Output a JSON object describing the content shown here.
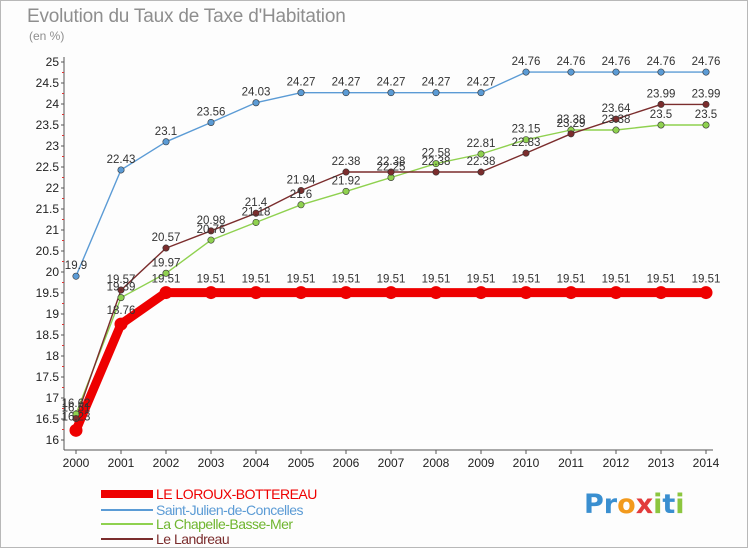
{
  "title": "Evolution du Taux de Taxe d'Habitation",
  "unit": "(en %)",
  "logo": {
    "letters": [
      {
        "ch": "P",
        "color": "#3a8fd0"
      },
      {
        "ch": "r",
        "color": "#3a8fd0"
      },
      {
        "ch": "o",
        "color": "#f29a1d"
      },
      {
        "ch": "x",
        "color": "#e23b3b"
      },
      {
        "ch": "i",
        "color": "#8cc63f"
      },
      {
        "ch": "t",
        "color": "#3a8fd0"
      },
      {
        "ch": "i",
        "color": "#8cc63f"
      }
    ]
  },
  "chart_data": {
    "type": "line",
    "title": "Evolution du Taux de Taxe d'Habitation",
    "ylabel": "(en %)",
    "xlabel": "",
    "x": [
      "2000",
      "2001",
      "2002",
      "2003",
      "2004",
      "2005",
      "2006",
      "2007",
      "2008",
      "2009",
      "2010",
      "2011",
      "2012",
      "2013",
      "2014"
    ],
    "ylim": [
      16,
      25
    ],
    "ytick_step": 0.5,
    "grid": false,
    "legend_position": "bottom-left",
    "series": [
      {
        "name": "LE LOROUX-BOTTEREAU",
        "color": "#ee0000",
        "emphasis": true,
        "values": [
          16.23,
          18.76,
          19.51,
          19.51,
          19.51,
          19.51,
          19.51,
          19.51,
          19.51,
          19.51,
          19.51,
          19.51,
          19.51,
          19.51,
          19.51
        ],
        "labels": [
          "16.23",
          "18.76",
          "19.51",
          "19.51",
          "19.51",
          "19.51",
          "19.51",
          "19.51",
          "19.51",
          "19.51",
          "19.51",
          "19.51",
          "19.51",
          "19.51",
          "19.51"
        ]
      },
      {
        "name": "Saint-Julien-de-Concelles",
        "color": "#5b9bd5",
        "values": [
          19.9,
          22.43,
          23.1,
          23.56,
          24.03,
          24.27,
          24.27,
          24.27,
          24.27,
          24.27,
          24.76,
          24.76,
          24.76,
          24.76,
          24.76
        ],
        "labels": [
          "19.9",
          "22.43",
          "23.1",
          "23.56",
          "24.03",
          "24.27",
          "24.27",
          "24.27",
          "24.27",
          "24.27",
          "24.76",
          "24.76",
          "24.76",
          "24.76",
          "24.76"
        ]
      },
      {
        "name": "La Chapelle-Basse-Mer",
        "color": "#8fd14f",
        "values": [
          16.62,
          19.39,
          19.97,
          20.76,
          21.18,
          21.6,
          21.92,
          22.25,
          22.58,
          22.81,
          23.15,
          23.38,
          23.38,
          23.5,
          23.5
        ],
        "labels": [
          "16.62",
          "19.39",
          "19.97",
          "20.76",
          "21.18",
          "21.6",
          "21.92",
          "22.25",
          "22.58",
          "22.81",
          "23.15",
          "23.38",
          "23.38",
          "23.5",
          "23.5"
        ]
      },
      {
        "name": "Le Landreau",
        "color": "#7b2d2d",
        "values": [
          16.51,
          19.57,
          20.57,
          20.98,
          21.4,
          21.94,
          22.38,
          22.38,
          22.38,
          22.38,
          22.83,
          23.29,
          23.64,
          23.99,
          23.99
        ],
        "labels": [
          "16.51",
          "19.57",
          "20.57",
          "20.98",
          "21.4",
          "21.94",
          "22.38",
          "22.38",
          "22.38",
          "22.38",
          "22.83",
          "23.29",
          "23.64",
          "23.99",
          "23.99"
        ]
      }
    ]
  }
}
